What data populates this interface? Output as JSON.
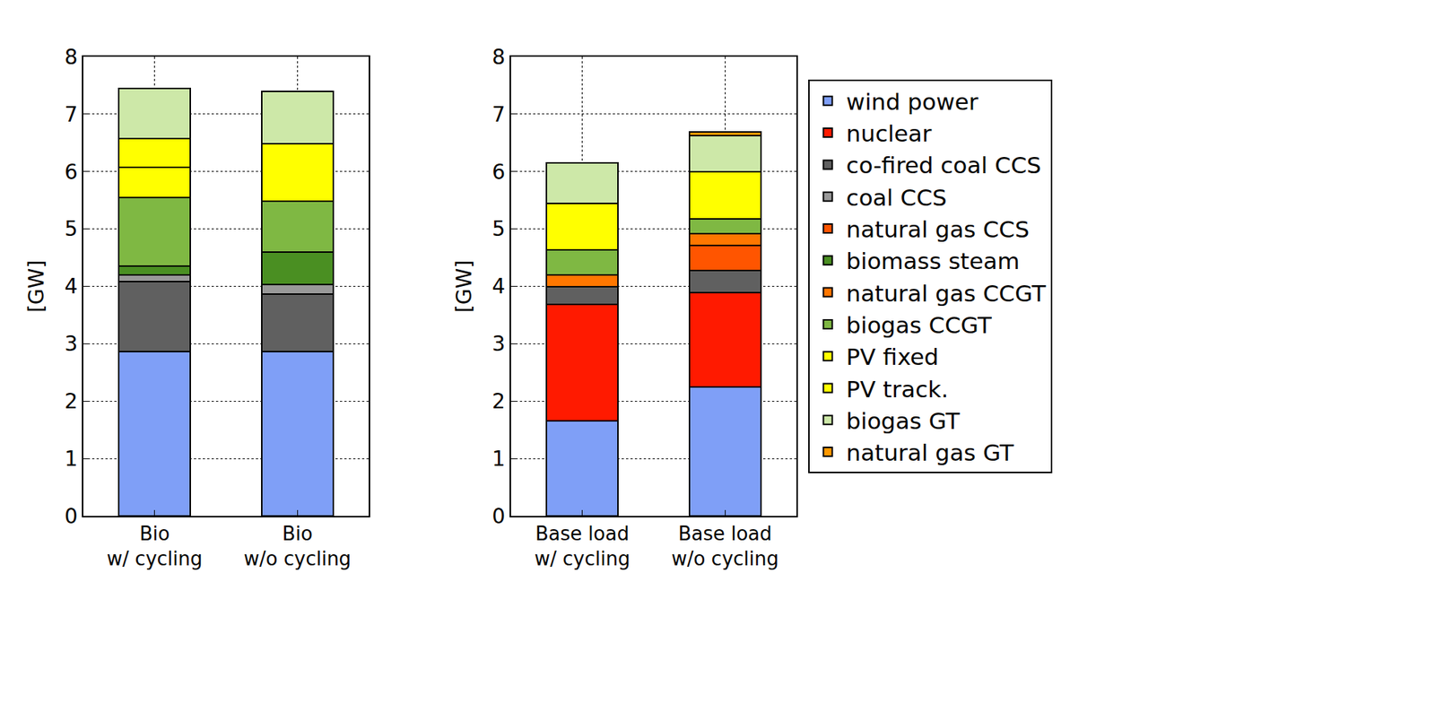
{
  "chart_data": [
    {
      "type": "bar",
      "stacked": true,
      "grid": true,
      "y_label": "[GW]",
      "categories": [
        "Bio\nw/ cycling",
        "Bio\nw/o cycling"
      ],
      "ylim": [
        0,
        8
      ],
      "yticks": [
        0,
        1,
        2,
        3,
        4,
        5,
        6,
        7,
        8
      ],
      "series": [
        {
          "name": "wind power",
          "color": "#7f9ff7",
          "values": [
            2.87,
            2.87
          ]
        },
        {
          "name": "nuclear",
          "color": "#ff1a00",
          "values": [
            0,
            0
          ]
        },
        {
          "name": "co-fired coal CCS",
          "color": "#606060",
          "values": [
            1.21,
            1.0
          ]
        },
        {
          "name": "coal CCS",
          "color": "#999999",
          "values": [
            0.12,
            0.16
          ]
        },
        {
          "name": "natural gas CCS",
          "color": "#ff5500",
          "values": [
            0,
            0
          ]
        },
        {
          "name": "biomass steam",
          "color": "#4a8f22",
          "values": [
            0.15,
            0.57
          ]
        },
        {
          "name": "natural gas CCGT",
          "color": "#ff7700",
          "values": [
            0,
            0
          ]
        },
        {
          "name": "biogas CCGT",
          "color": "#7fb843",
          "values": [
            1.2,
            0.88
          ]
        },
        {
          "name": "PV fixed",
          "color": "#ffff00",
          "values": [
            0.53,
            1.0
          ]
        },
        {
          "name": "PV track.",
          "color": "#ffff00",
          "values": [
            0.5,
            0
          ]
        },
        {
          "name": "biogas GT",
          "color": "#cde8a8",
          "values": [
            0.87,
            0.92
          ]
        },
        {
          "name": "natural gas GT",
          "color": "#ff9900",
          "values": [
            0,
            0
          ]
        }
      ]
    },
    {
      "type": "bar",
      "stacked": true,
      "grid": true,
      "legend": "outside right",
      "y_label": "[GW]",
      "categories": [
        "Base load\nw/ cycling",
        "Base load\nw/o cycling"
      ],
      "ylim": [
        0,
        8
      ],
      "yticks": [
        0,
        1,
        2,
        3,
        4,
        5,
        6,
        7,
        8
      ],
      "series": [
        {
          "name": "wind power",
          "color": "#7f9ff7",
          "values": [
            1.66,
            2.25
          ]
        },
        {
          "name": "nuclear",
          "color": "#ff1a00",
          "values": [
            2.02,
            1.64
          ]
        },
        {
          "name": "co-fired coal CCS",
          "color": "#606060",
          "values": [
            0.31,
            0.38
          ]
        },
        {
          "name": "coal CCS",
          "color": "#999999",
          "values": [
            0,
            0
          ]
        },
        {
          "name": "natural gas CCS",
          "color": "#ff5500",
          "values": [
            0,
            0.44
          ]
        },
        {
          "name": "biomass steam",
          "color": "#4a8f22",
          "values": [
            0,
            0
          ]
        },
        {
          "name": "natural gas CCGT",
          "color": "#ff7700",
          "values": [
            0.21,
            0.21
          ]
        },
        {
          "name": "biogas CCGT",
          "color": "#7fb843",
          "values": [
            0.44,
            0.25
          ]
        },
        {
          "name": "PV fixed",
          "color": "#ffff00",
          "values": [
            0.81,
            0.83
          ]
        },
        {
          "name": "PV track.",
          "color": "#ffff00",
          "values": [
            0,
            0
          ]
        },
        {
          "name": "biogas GT",
          "color": "#cde8a8",
          "values": [
            0.7,
            0.63
          ]
        },
        {
          "name": "natural gas GT",
          "color": "#ff9900",
          "values": [
            0,
            0.06
          ]
        }
      ]
    }
  ]
}
